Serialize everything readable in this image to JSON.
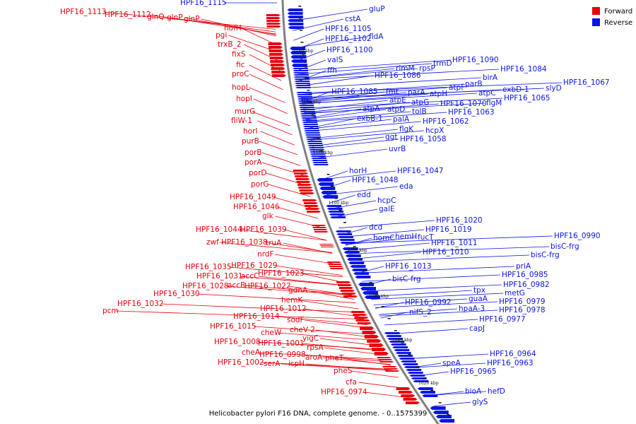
{
  "caption": "Helicobacter pylori F16 DNA, complete genome. - 0..1575399",
  "legend": [
    {
      "label": "Forward",
      "color": "#e8000b"
    },
    {
      "label": "Reverse",
      "color": "#0a14e8"
    }
  ],
  "colors": {
    "forward": "#e8000b",
    "reverse": "#0a14e8",
    "backbone": "#808080"
  },
  "ticks": [
    "1160 kbp",
    "1140 kbp",
    "1120 kbp",
    "1100 kbp",
    "1080 kbp",
    "1060 kbp",
    "1040 kbp",
    "1020 kbp"
  ],
  "forward_labels": [
    "HPF16_1113",
    "HPF16_1112",
    "glnQ",
    "glnP",
    "glnP",
    "hofH",
    "pgi",
    "trxB_2",
    "fixS",
    "fic",
    "proC",
    "hopL",
    "hopI",
    "murG",
    "fliW-1",
    "horI",
    "purB",
    "porB",
    "porA",
    "porD",
    "porG",
    "HPF16_1049",
    "HPF16_1046",
    "glk",
    "HPF16_1044",
    "HPF16_1039",
    "zwf",
    "HPF16_1038",
    "truA",
    "nrdF",
    "HPF16_1035",
    "HPF16_1029",
    "HPF16_1031",
    "accC",
    "HPF16_1023",
    "HPF16_1028",
    "accB",
    "HPF16_1022",
    "HPF16_1030",
    "gdhA",
    "pcm",
    "HPF16_1032",
    "hemK",
    "HPF16_1012",
    "HPF16_1014",
    "sodF",
    "HPF16_1015",
    "cheV-2",
    "cheW",
    "yigC",
    "HPF16_1008",
    "HPF16_1001",
    "rpsA",
    "cheA",
    "HPF16_0998",
    "aroA",
    "pheT",
    "HPF16_1002",
    "serA",
    "ispH",
    "pheS",
    "cfa",
    "HPF16_0974"
  ],
  "reverse_labels": [
    "HPF16_1115",
    "gluP",
    "cstA",
    "HPF16_1105",
    "HPF16_1102",
    "fldA",
    "HPF16_1100",
    "valS",
    "trmD",
    "HPF16_1090",
    "rimM",
    "rpsP",
    "ffh",
    "HPF16_1086",
    "HPF16_1084",
    "birA",
    "slyD",
    "HPF16_1067",
    "parB",
    "atpF",
    "HPF16_1085",
    "fmt",
    "parA",
    "atpH",
    "atpC",
    "exbD-1",
    "HPF16_1065",
    "atpE",
    "atpG",
    "HPF16_1070",
    "flgM",
    "atpA",
    "atpD",
    "tolB",
    "HPF16_1063",
    "exbB-1",
    "palA",
    "HPF16_1062",
    "flgK",
    "hcpX",
    "ggt",
    "HPF16_1058",
    "uvrB",
    "horH",
    "HPF16_1047",
    "HPF16_1048",
    "eda",
    "edd",
    "hcpC",
    "galE",
    "HPF16_1020",
    "dcd",
    "HPF16_1019",
    "homC",
    "hemH",
    "fucT",
    "HPF16_0990",
    "HPF16_1011",
    "bisC-frg",
    "HPF16_1010",
    "bisC-frg",
    "HPF16_1013",
    "HPF16_0985",
    "priA",
    "HPF16_0982",
    "bisC-frg",
    "tpx",
    "metG",
    "guaA",
    "HPF16_0979",
    "HPF16_0992",
    "hpaA-3",
    "HPF16_0978",
    "nifS_2",
    "HPF16_0977",
    "capJ",
    "HPF16_0964",
    "speA",
    "HPF16_0963",
    "HPF16_0965",
    "bioA",
    "hefD",
    "glyS"
  ]
}
